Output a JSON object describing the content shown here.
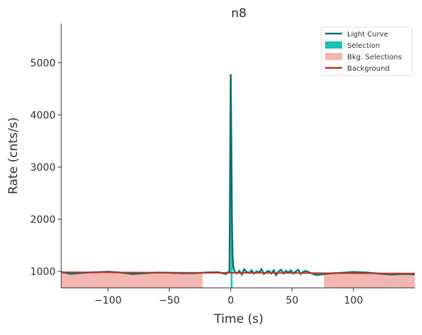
{
  "chart_data": {
    "type": "lightcurve",
    "title": "n8",
    "xlabel": "Time (s)",
    "ylabel": "Rate (cnts/s)",
    "xlim": [
      -138,
      150
    ],
    "ylim": [
      685,
      5750
    ],
    "xticks": [
      {
        "value": -100,
        "label": "−100"
      },
      {
        "value": -50,
        "label": "−50"
      },
      0,
      50,
      100
    ],
    "yticks": [
      1000,
      2000,
      3000,
      4000,
      5000
    ],
    "series": [
      {
        "name": "Light Curve",
        "color": "#0c7373",
        "x": [
          -138,
          -130,
          -120,
          -110,
          -100,
          -90,
          -80,
          -70,
          -60,
          -50,
          -40,
          -30,
          -20,
          -10,
          -4,
          -2,
          -1,
          0,
          0.5,
          1,
          1.5,
          2,
          3,
          5,
          7,
          9,
          11,
          13,
          15,
          17,
          19,
          21,
          23,
          25,
          27,
          29,
          31,
          33,
          35,
          37,
          39,
          41,
          43,
          45,
          47,
          49,
          51,
          53,
          55,
          57,
          59,
          61,
          65,
          70,
          80,
          90,
          100,
          110,
          120,
          130,
          140,
          150
        ],
        "values": [
          990,
          950,
          975,
          985,
          995,
          980,
          950,
          965,
          980,
          975,
          965,
          965,
          980,
          985,
          950,
          990,
          1000,
          4780,
          3550,
          1980,
          1300,
          1100,
          1000,
          960,
          1010,
          940,
          1040,
          990,
          970,
          1020,
          960,
          1000,
          980,
          1040,
          950,
          990,
          1010,
          960,
          1020,
          930,
          1000,
          1030,
          960,
          1010,
          980,
          1020,
          960,
          1000,
          1030,
          950,
          990,
          1010,
          970,
          930,
          960,
          975,
          990,
          980,
          960,
          940,
          950,
          945
        ]
      },
      {
        "name": "Selection",
        "color": "#1ec0b4",
        "range": [
          0,
          1.5
        ]
      },
      {
        "name": "Bkg. Selections",
        "color": "#f4b6b0",
        "ranges": [
          [
            -138,
            -23
          ],
          [
            76,
            150
          ]
        ]
      },
      {
        "name": "Background",
        "color": "#c0392b",
        "x": [
          -138,
          150
        ],
        "values": [
          985,
          960
        ]
      }
    ]
  }
}
